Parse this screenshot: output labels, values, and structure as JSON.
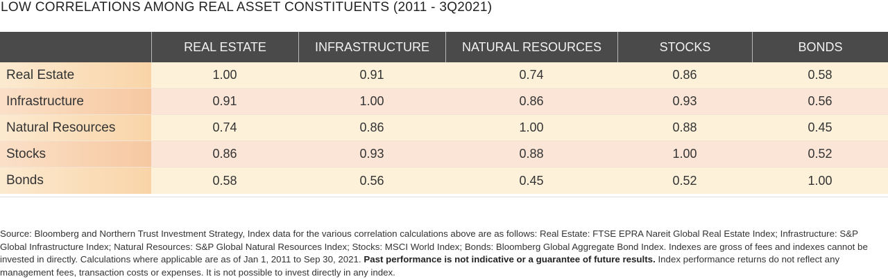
{
  "title": "LOW CORRELATIONS AMONG REAL ASSET CONSTITUENTS (2011 - 3Q2021)",
  "table": {
    "columns": [
      "REAL ESTATE",
      "INFRASTRUCTURE",
      "NATURAL RESOURCES",
      "STOCKS",
      "BONDS"
    ],
    "rows": [
      {
        "label": "Real Estate",
        "values": [
          "1.00",
          "0.91",
          "0.74",
          "0.86",
          "0.58"
        ]
      },
      {
        "label": "Infrastructure",
        "values": [
          "0.91",
          "1.00",
          "0.86",
          "0.93",
          "0.56"
        ]
      },
      {
        "label": "Natural Resources",
        "values": [
          "0.74",
          "0.86",
          "1.00",
          "0.88",
          "0.45"
        ]
      },
      {
        "label": "Stocks",
        "values": [
          "0.86",
          "0.93",
          "0.88",
          "1.00",
          "0.52"
        ]
      },
      {
        "label": "Bonds",
        "values": [
          "0.58",
          "0.56",
          "0.45",
          "0.52",
          "1.00"
        ]
      }
    ]
  },
  "source": {
    "text": "Source: Bloomberg and Northern Trust Investment Strategy, Index data for the various correlation calculations above are as follows: Real Estate: FTSE EPRA Nareit Global Real Estate Index; Infrastructure: S&P Global Infrastructure Index; Natural Resources: S&P Global Natural Resources Index; Stocks: MSCI World Index; Bonds: Bloomberg Global Aggregate Bond Index. Indexes are gross of fees and indexes cannot be invested in directly. Calculations where applicable are as of Jan 1, 2011 to Sep 30, 2021. ",
    "bold": "Past performance is not indicative or a guarantee of future results.",
    "tail": " Index performance returns do not reflect any management fees, transaction costs or expenses. It is not possible to invest directly in any index."
  },
  "colors": {
    "header_bg": "#4a4a4a",
    "row_even": "#fdf1da",
    "row_odd": "#fbe5d6",
    "label_gradient_end": "#f9d4a8"
  }
}
